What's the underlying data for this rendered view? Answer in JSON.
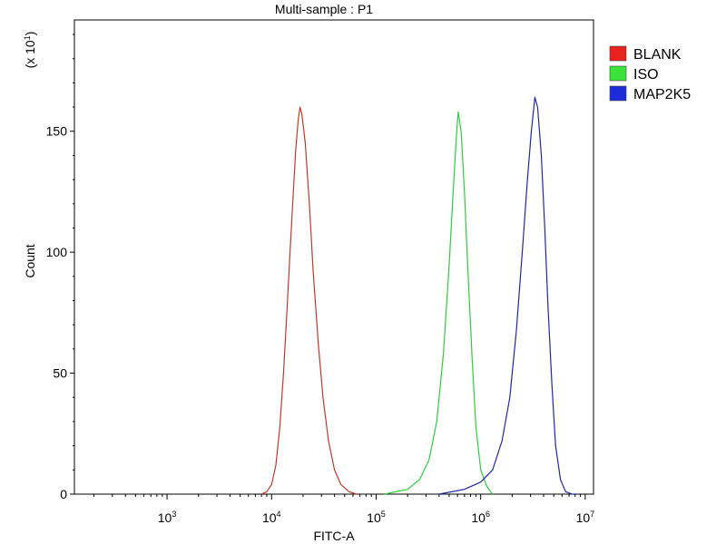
{
  "chart_data": {
    "type": "line",
    "title": "Multi-sample : P1",
    "xlabel": "FITC-A",
    "ylabel": "Count",
    "y_multiplier": {
      "base": "(x 10",
      "exp": "1",
      "close": ")"
    },
    "x_scale": "log",
    "xlim": [
      130,
      12000000
    ],
    "ylim": [
      0,
      196
    ],
    "y_ticks": [
      0,
      50,
      100,
      150
    ],
    "x_ticks": [
      {
        "value": 1000,
        "base": "10",
        "exp": "3"
      },
      {
        "value": 10000,
        "base": "10",
        "exp": "4"
      },
      {
        "value": 100000,
        "base": "10",
        "exp": "5"
      },
      {
        "value": 1000000,
        "base": "10",
        "exp": "6"
      },
      {
        "value": 10000000,
        "base": "10",
        "exp": "7"
      }
    ],
    "legend_position": "outside-right-top",
    "series": [
      {
        "name": "BLANK",
        "color": "#c0392b",
        "swatch": "#e8231f",
        "points": [
          [
            8000,
            0
          ],
          [
            9000,
            1
          ],
          [
            10000,
            4
          ],
          [
            11000,
            12
          ],
          [
            12000,
            28
          ],
          [
            13000,
            50
          ],
          [
            14000,
            75
          ],
          [
            15000,
            100
          ],
          [
            16000,
            122
          ],
          [
            17000,
            142
          ],
          [
            18000,
            155
          ],
          [
            18700,
            160
          ],
          [
            19500,
            157
          ],
          [
            21000,
            145
          ],
          [
            23000,
            120
          ],
          [
            25000,
            92
          ],
          [
            28000,
            62
          ],
          [
            31000,
            40
          ],
          [
            35000,
            22
          ],
          [
            40000,
            10
          ],
          [
            46000,
            4
          ],
          [
            55000,
            1
          ],
          [
            65000,
            0
          ]
        ]
      },
      {
        "name": "ISO",
        "color": "#2ecc40",
        "swatch": "#3ae23a",
        "points": [
          [
            120000,
            0
          ],
          [
            200000,
            2
          ],
          [
            260000,
            6
          ],
          [
            320000,
            14
          ],
          [
            380000,
            30
          ],
          [
            440000,
            58
          ],
          [
            500000,
            95
          ],
          [
            550000,
            128
          ],
          [
            590000,
            150
          ],
          [
            610000,
            158
          ],
          [
            650000,
            150
          ],
          [
            700000,
            125
          ],
          [
            760000,
            90
          ],
          [
            830000,
            55
          ],
          [
            900000,
            28
          ],
          [
            1000000,
            10
          ],
          [
            1150000,
            3
          ],
          [
            1300000,
            0
          ]
        ]
      },
      {
        "name": "MAP2K5",
        "color": "#1f2a9a",
        "swatch": "#1e2bd8",
        "points": [
          [
            400000,
            0
          ],
          [
            700000,
            2
          ],
          [
            1000000,
            5
          ],
          [
            1300000,
            10
          ],
          [
            1600000,
            22
          ],
          [
            1900000,
            40
          ],
          [
            2200000,
            68
          ],
          [
            2500000,
            100
          ],
          [
            2800000,
            130
          ],
          [
            3050000,
            150
          ],
          [
            3300000,
            164
          ],
          [
            3500000,
            160
          ],
          [
            3800000,
            140
          ],
          [
            4100000,
            110
          ],
          [
            4400000,
            78
          ],
          [
            4800000,
            45
          ],
          [
            5200000,
            20
          ],
          [
            5800000,
            6
          ],
          [
            6500000,
            1
          ],
          [
            7500000,
            0
          ],
          [
            8300000,
            0
          ]
        ]
      }
    ]
  }
}
